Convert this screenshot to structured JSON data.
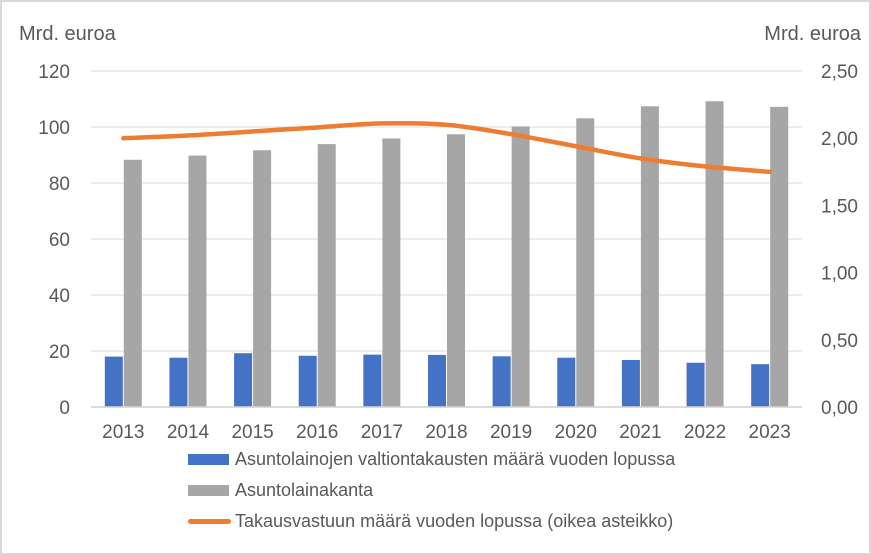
{
  "chart_data": {
    "type": "combo-bar-line",
    "title": "",
    "categories": [
      "2013",
      "2014",
      "2015",
      "2016",
      "2017",
      "2018",
      "2019",
      "2020",
      "2021",
      "2022",
      "2023"
    ],
    "series": [
      {
        "name": "Asuntolainojen valtiontakausten määrä vuoden lopussa",
        "type": "bar",
        "axis": "left",
        "color": "#4472C4",
        "values": [
          18.0,
          17.6,
          19.2,
          18.3,
          18.7,
          18.6,
          18.1,
          17.6,
          16.8,
          15.8,
          15.3
        ]
      },
      {
        "name": "Asuntolainakanta",
        "type": "bar",
        "axis": "left",
        "color": "#A6A6A6",
        "values": [
          88.3,
          89.8,
          91.7,
          93.9,
          95.9,
          97.4,
          100.2,
          103.1,
          107.4,
          109.2,
          107.2
        ]
      },
      {
        "name": "Takausvastuun määrä vuoden lopussa (oikea asteikko)",
        "type": "line",
        "axis": "right",
        "color": "#ED7D31",
        "values": [
          2.0,
          2.02,
          2.05,
          2.08,
          2.11,
          2.1,
          2.03,
          1.94,
          1.85,
          1.79,
          1.75
        ]
      }
    ],
    "left_axis": {
      "title": "Mrd. euroa",
      "min": 0,
      "max": 120,
      "step": 20,
      "tick_labels": [
        "0",
        "20",
        "40",
        "60",
        "80",
        "100",
        "120"
      ]
    },
    "right_axis": {
      "title": "Mrd. euroa",
      "min": 0,
      "max": 2.5,
      "step": 0.5,
      "tick_labels": [
        "0,00",
        "0,50",
        "1,00",
        "1,50",
        "2,00",
        "2,50"
      ]
    },
    "grid": true,
    "legend_position": "bottom-left"
  },
  "colors": {
    "grid": "#D9D9D9",
    "axis_line": "#CFCFCF",
    "text": "#595959",
    "background": "#FFFFFF",
    "border": "#D8D8D8"
  }
}
